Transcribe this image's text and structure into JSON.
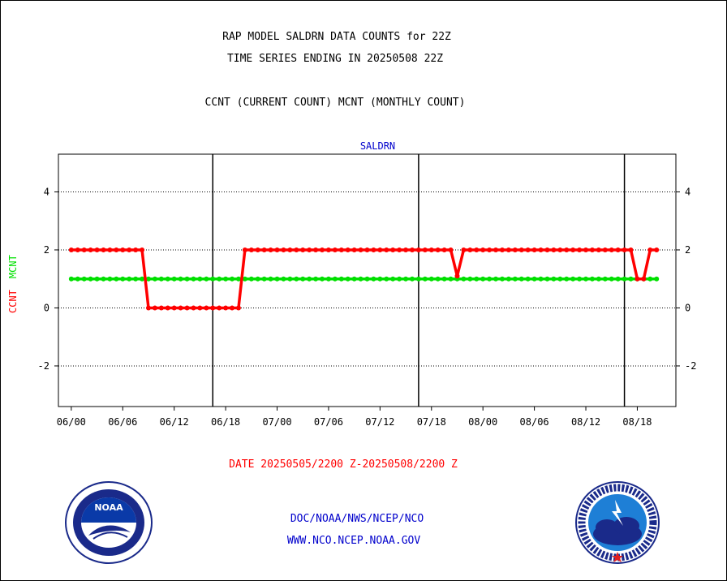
{
  "header": {
    "title_line1": "RAP MODEL SALDRN DATA COUNTS for 22Z",
    "title_line2": "TIME SERIES ENDING IN 20250508 22Z",
    "subtitle": "CCNT (CURRENT COUNT) MCNT (MONTHLY COUNT)"
  },
  "footer": {
    "date_range": "DATE 20250505/2200 Z-20250508/2200 Z",
    "org_line": "DOC/NOAA/NWS/NCEP/NCO",
    "url_line": "WWW.NCO.NCEP.NOAA.GOV"
  },
  "logos": {
    "left": "noaa-logo",
    "left_text": "NOAA",
    "right": "nws-logo"
  },
  "colors": {
    "ccnt": "#ff0000",
    "mcnt": "#00e000",
    "title": "#000000",
    "plot_label": "#0000cc",
    "date": "#ff0000",
    "footer": "#0000cc"
  },
  "chart_data": {
    "type": "line",
    "title": "SALDRN",
    "ylabel_series": [
      "CCNT",
      "MCNT"
    ],
    "ylim": [
      -3.4,
      5.3
    ],
    "yticks": [
      -2,
      0,
      2,
      4
    ],
    "ytick_labels": [
      "-2",
      "0",
      "2",
      "4"
    ],
    "xlim": [
      -2,
      94
    ],
    "xtick_positions": [
      0,
      8,
      16,
      24,
      32,
      40,
      48,
      56,
      64,
      72,
      80,
      88
    ],
    "xtick_labels": [
      "06/00",
      "06/06",
      "06/12",
      "06/18",
      "07/00",
      "07/06",
      "07/12",
      "07/18",
      "08/00",
      "08/06",
      "08/12",
      "08/18"
    ],
    "day_boundaries": [
      22,
      54,
      86
    ],
    "grid": true,
    "series": [
      {
        "name": "CCNT",
        "values": [
          2,
          2,
          2,
          2,
          2,
          2,
          2,
          2,
          2,
          2,
          2,
          2,
          0,
          0,
          0,
          0,
          0,
          0,
          0,
          0,
          0,
          0,
          0,
          0,
          0,
          0,
          0,
          2,
          2,
          2,
          2,
          2,
          2,
          2,
          2,
          2,
          2,
          2,
          2,
          2,
          2,
          2,
          2,
          2,
          2,
          2,
          2,
          2,
          2,
          2,
          2,
          2,
          2,
          2,
          2,
          2,
          2,
          2,
          2,
          2,
          1.1,
          2,
          2,
          2,
          2,
          2,
          2,
          2,
          2,
          2,
          2,
          2,
          2,
          2,
          2,
          2,
          2,
          2,
          2,
          2,
          2,
          2,
          2,
          2,
          2,
          2,
          2,
          2,
          1,
          1,
          2,
          2
        ]
      },
      {
        "name": "MCNT",
        "values": [
          1,
          1,
          1,
          1,
          1,
          1,
          1,
          1,
          1,
          1,
          1,
          1,
          1,
          1,
          1,
          1,
          1,
          1,
          1,
          1,
          1,
          1,
          1,
          1,
          1,
          1,
          1,
          1,
          1,
          1,
          1,
          1,
          1,
          1,
          1,
          1,
          1,
          1,
          1,
          1,
          1,
          1,
          1,
          1,
          1,
          1,
          1,
          1,
          1,
          1,
          1,
          1,
          1,
          1,
          1,
          1,
          1,
          1,
          1,
          1,
          1,
          1,
          1,
          1,
          1,
          1,
          1,
          1,
          1,
          1,
          1,
          1,
          1,
          1,
          1,
          1,
          1,
          1,
          1,
          1,
          1,
          1,
          1,
          1,
          1,
          1,
          1,
          1,
          1,
          1,
          1,
          1
        ]
      }
    ]
  }
}
